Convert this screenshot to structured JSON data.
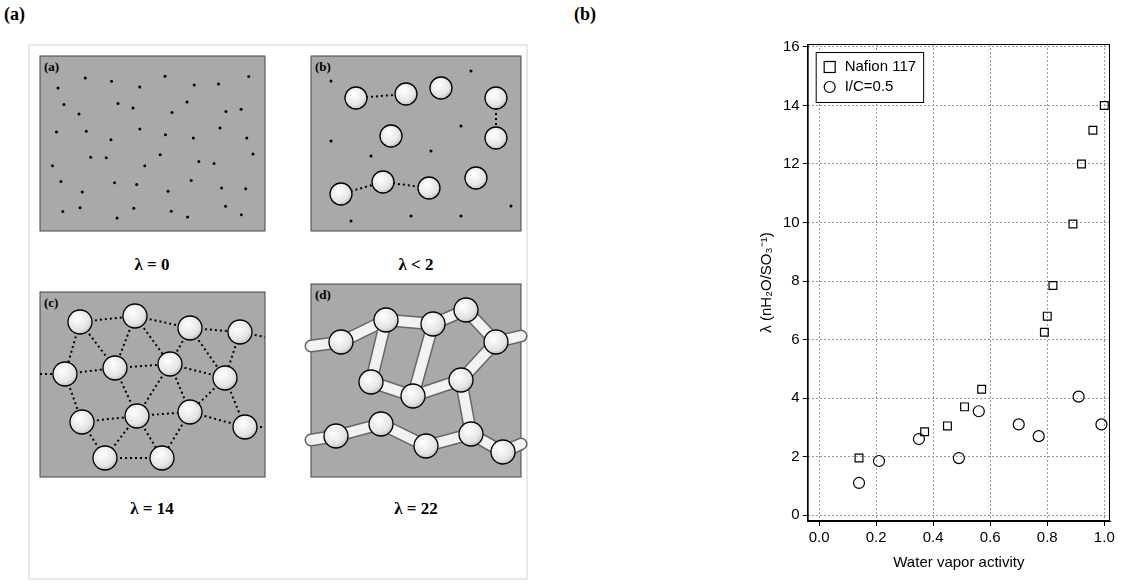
{
  "figure_labels": {
    "left": "(a)",
    "right": "(b)"
  },
  "diagram": {
    "panels": [
      {
        "letter": "(a)",
        "caption": "λ = 0"
      },
      {
        "letter": "(b)",
        "caption": "λ < 2"
      },
      {
        "letter": "(c)",
        "caption": "λ = 14"
      },
      {
        "letter": "(d)",
        "caption": "λ = 22"
      }
    ]
  },
  "chart_data": {
    "type": "scatter",
    "x_label": "Water vapor activity",
    "y_label": "λ (nH₂O/SO₃⁻¹)",
    "xlim": [
      -0.04,
      1.02
    ],
    "xticks": [
      {
        "value": 0,
        "label": "0.0"
      },
      0.2,
      0.4,
      0.6,
      0.8,
      {
        "value": 1,
        "label": "1.0"
      }
    ],
    "ylim": [
      -0.2,
      16.1
    ],
    "yticks": [
      0,
      2,
      4,
      6,
      8,
      10,
      12,
      14,
      16
    ],
    "grid": true,
    "legend": "upper left",
    "series": [
      {
        "name": "Nafion 117",
        "color": "#000000",
        "marker": "square",
        "x": [
          0.14,
          0.37,
          0.45,
          0.51,
          0.57,
          0.79,
          0.8,
          0.82,
          0.89,
          0.92,
          0.96,
          1.0
        ],
        "values": [
          1.95,
          2.85,
          3.05,
          3.7,
          4.3,
          6.25,
          6.8,
          7.85,
          9.95,
          12.0,
          13.15,
          14.0
        ]
      },
      {
        "name": "I/C=0.5",
        "color": "#000000",
        "marker": "circle",
        "x": [
          0.14,
          0.21,
          0.35,
          0.49,
          0.56,
          0.7,
          0.77,
          0.91,
          0.99
        ],
        "values": [
          1.1,
          1.85,
          2.6,
          1.95,
          3.55,
          3.1,
          2.7,
          4.05,
          3.1
        ]
      }
    ]
  }
}
